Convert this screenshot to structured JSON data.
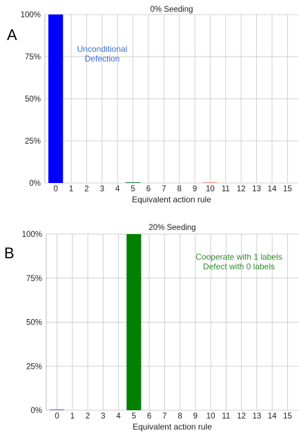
{
  "chart_data": [
    {
      "panel_label": "A",
      "type": "bar",
      "title": "0% Seeding",
      "xlabel": "Equivalent action rule",
      "ylabel": "",
      "ylim": [
        0,
        100
      ],
      "yticks": [
        "0%",
        "25%",
        "50%",
        "75%",
        "100%"
      ],
      "categories": [
        "0",
        "1",
        "2",
        "3",
        "4",
        "5",
        "6",
        "7",
        "8",
        "9",
        "10",
        "11",
        "12",
        "13",
        "14",
        "15"
      ],
      "values": [
        100,
        0,
        0,
        0,
        0,
        0.5,
        0,
        0,
        0,
        0,
        0.5,
        0,
        0,
        0,
        0,
        0
      ],
      "bar_colors": [
        "#0000ff",
        "#0000ff",
        "#0000ff",
        "#0000ff",
        "#0000ff",
        "#2e8b57",
        "#0000ff",
        "#0000ff",
        "#0000ff",
        "#0000ff",
        "#e8a07a",
        "#0000ff",
        "#0000ff",
        "#0000ff",
        "#0000ff",
        "#0000ff"
      ],
      "annotation": {
        "lines": [
          "Unconditional",
          "Defection"
        ],
        "color": "#3a6fd8"
      },
      "grid": true
    },
    {
      "panel_label": "B",
      "type": "bar",
      "title": "20% Seeding",
      "xlabel": "Equivalent action rule",
      "ylabel": "",
      "ylim": [
        0,
        100
      ],
      "yticks": [
        "0%",
        "25%",
        "50%",
        "75%",
        "100%"
      ],
      "categories": [
        "0",
        "1",
        "2",
        "3",
        "4",
        "5",
        "6",
        "7",
        "8",
        "9",
        "10",
        "11",
        "12",
        "13",
        "14",
        "15"
      ],
      "values": [
        0.5,
        0,
        0,
        0,
        0,
        100,
        0,
        0,
        0,
        0,
        0,
        0,
        0,
        0,
        0,
        0
      ],
      "bar_colors": [
        "#6b7fd8",
        "#008000",
        "#008000",
        "#008000",
        "#008000",
        "#008000",
        "#008000",
        "#008000",
        "#008000",
        "#008000",
        "#008000",
        "#008000",
        "#008000",
        "#008000",
        "#008000",
        "#008000"
      ],
      "annotation": {
        "lines": [
          "Cooperate with 1 labels",
          "Defect with 0 labels"
        ],
        "color": "#2e8b2e"
      },
      "grid": true
    }
  ]
}
